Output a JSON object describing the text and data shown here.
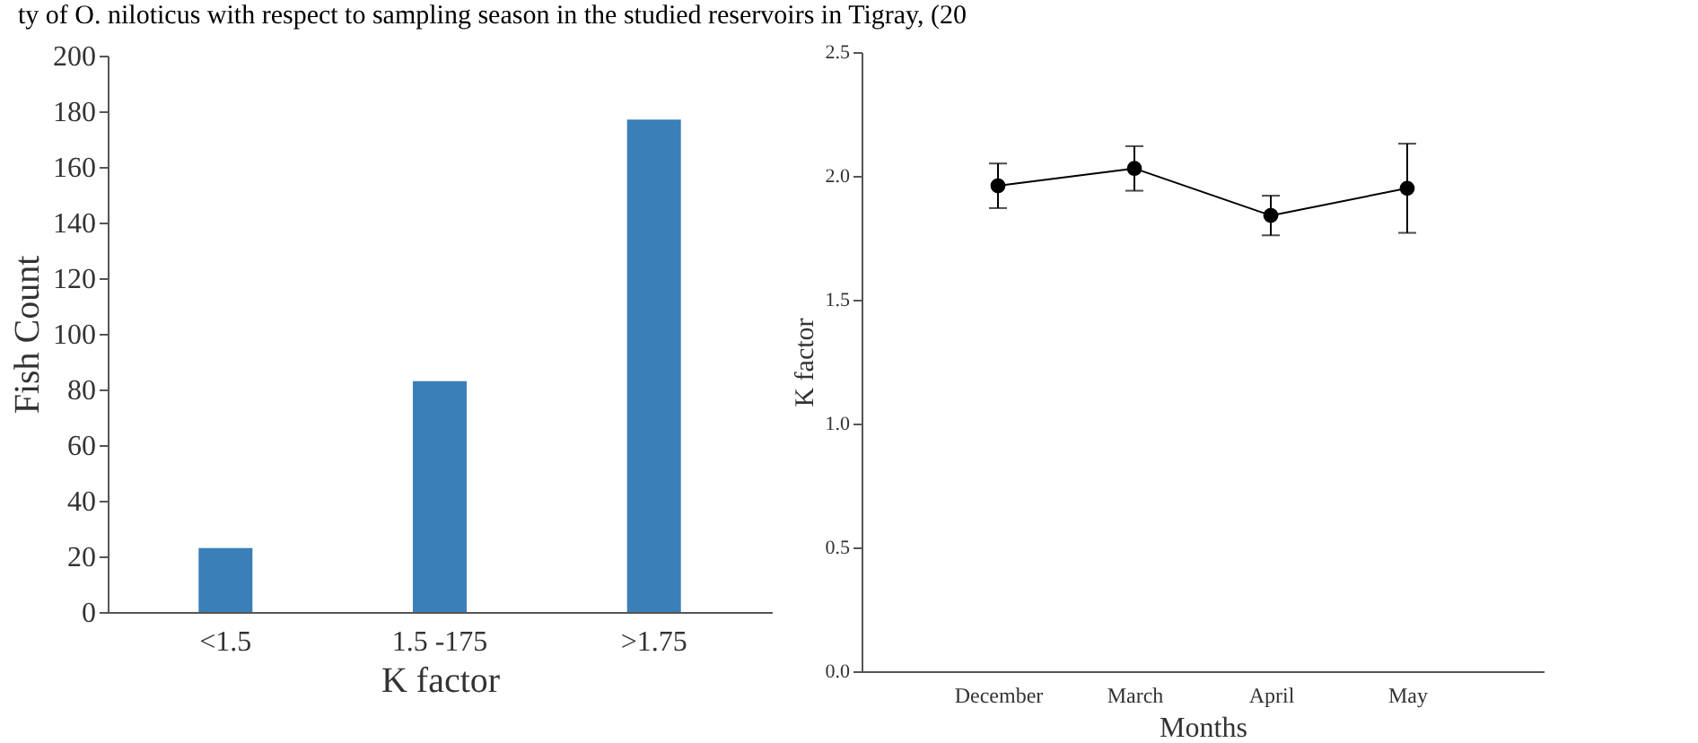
{
  "chart_data": [
    {
      "type": "bar",
      "annotations": [
        "ty of O. niloticus with respect to sampling season in the studied reservoirs in Tigray, (20"
      ],
      "xlabel": "K factor",
      "ylabel": "Fish Count",
      "categories": [
        "<1.5",
        "1.5 -175",
        ">1.75"
      ],
      "values": [
        23,
        83,
        177
      ],
      "color": "#3a7fb8",
      "ylim": [
        0,
        200
      ],
      "yticks": [
        0,
        20,
        40,
        60,
        80,
        100,
        120,
        140,
        160,
        180,
        200
      ],
      "grid": false
    },
    {
      "type": "line",
      "xlabel": "Months",
      "ylabel": "K factor",
      "categories": [
        "December",
        "March",
        "April",
        "May"
      ],
      "values": [
        1.96,
        2.03,
        1.84,
        1.95
      ],
      "errors": [
        [
          1.87,
          2.05
        ],
        [
          1.94,
          2.12
        ],
        [
          1.76,
          1.92
        ],
        [
          1.77,
          2.13
        ]
      ],
      "color": "#000000",
      "marker": "circle",
      "line_style": "solid",
      "ylim": [
        0,
        2.5
      ],
      "yticks": [
        {
          "value": 0,
          "label": "0.0"
        },
        {
          "value": 0.5,
          "label": "0.5"
        },
        {
          "value": 1,
          "label": "1.0"
        },
        {
          "value": 1.5,
          "label": "1.5"
        },
        {
          "value": 2,
          "label": "2.0"
        },
        {
          "value": 2.5,
          "label": "2.5"
        }
      ],
      "grid": false
    }
  ]
}
